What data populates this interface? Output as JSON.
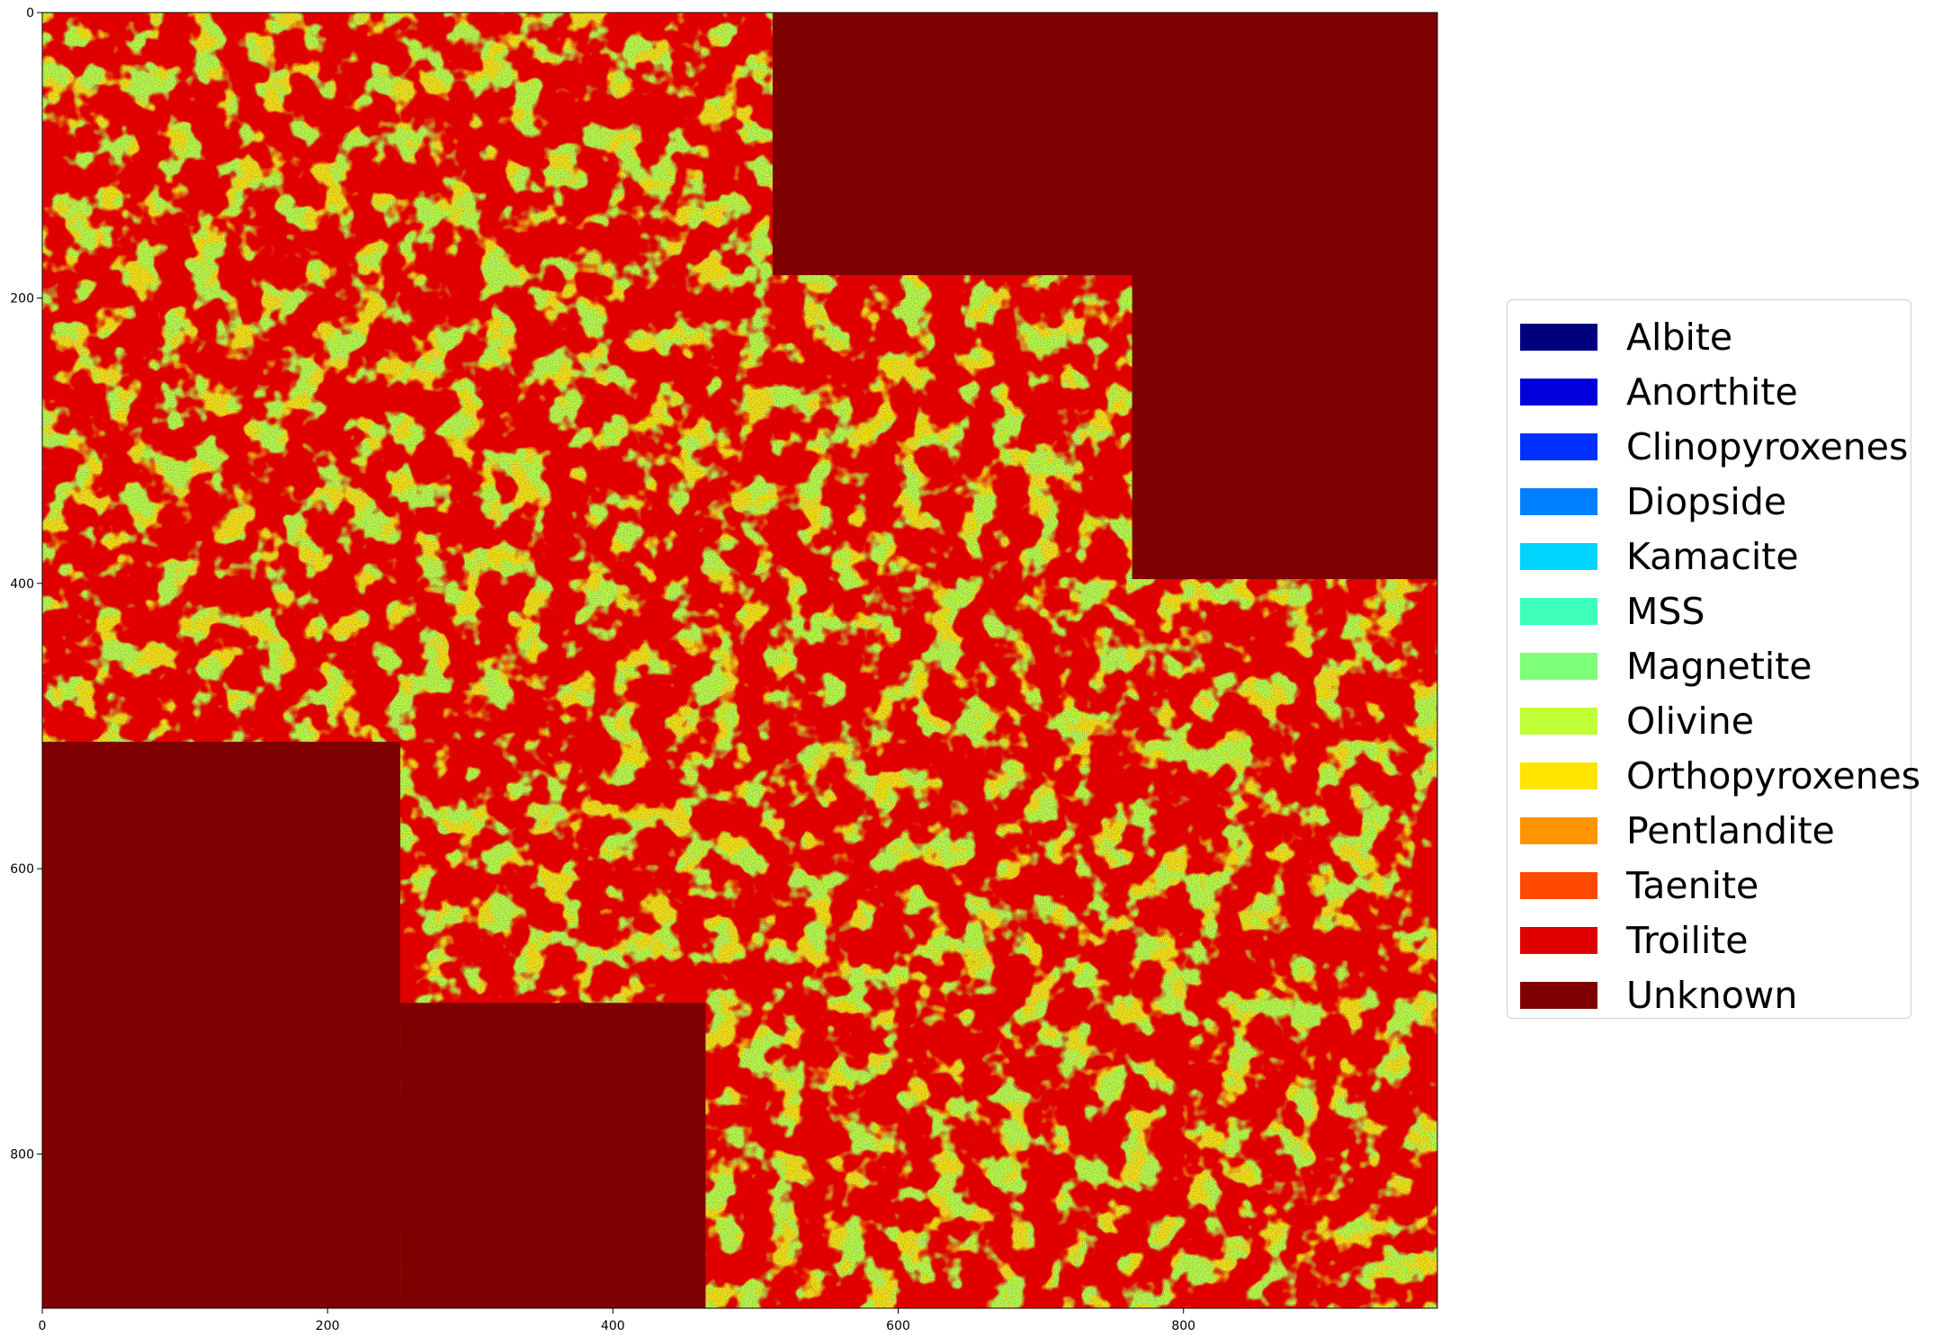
{
  "chart_data": {
    "type": "heatmap",
    "title": "",
    "xlabel": "",
    "ylabel": "",
    "xlim": [
      0,
      978
    ],
    "ylim": [
      908,
      0
    ],
    "y_axis_inverted": true,
    "xticks": [
      0,
      200,
      400,
      600,
      800
    ],
    "yticks": [
      0,
      200,
      400,
      600,
      800
    ],
    "grid": false,
    "legend_position": "right",
    "categories": [
      {
        "name": "Albite",
        "color": "#00007f"
      },
      {
        "name": "Anorthite",
        "color": "#0000dc"
      },
      {
        "name": "Clinopyroxenes",
        "color": "#0030ff"
      },
      {
        "name": "Diopside",
        "color": "#0080ff"
      },
      {
        "name": "Kamacite",
        "color": "#00d4ff"
      },
      {
        "name": "MSS",
        "color": "#3dffba"
      },
      {
        "name": "Magnetite",
        "color": "#7dff7a"
      },
      {
        "name": "Olivine",
        "color": "#c1ff36"
      },
      {
        "name": "Orthopyroxenes",
        "color": "#ffe500"
      },
      {
        "name": "Pentlandite",
        "color": "#ff9400"
      },
      {
        "name": "Taenite",
        "color": "#ff4800"
      },
      {
        "name": "Troilite",
        "color": "#e00000"
      },
      {
        "name": "Unknown",
        "color": "#7f0000"
      }
    ],
    "unknown_blocks_data_units": [
      {
        "x": [
          512,
          978
        ],
        "y": [
          0,
          184
        ]
      },
      {
        "x": [
          764,
          978
        ],
        "y": [
          184,
          397
        ]
      },
      {
        "x": [
          0,
          251
        ],
        "y": [
          511,
          908
        ]
      },
      {
        "x": [
          251,
          465
        ],
        "y": [
          694,
          908
        ]
      }
    ]
  }
}
